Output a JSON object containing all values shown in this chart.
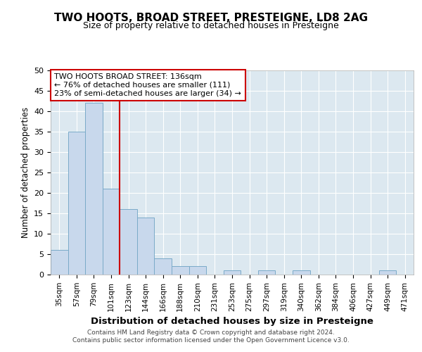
{
  "title": "TWO HOOTS, BROAD STREET, PRESTEIGNE, LD8 2AG",
  "subtitle": "Size of property relative to detached houses in Presteigne",
  "xlabel": "Distribution of detached houses by size in Presteigne",
  "ylabel": "Number of detached properties",
  "categories": [
    "35sqm",
    "57sqm",
    "79sqm",
    "101sqm",
    "123sqm",
    "144sqm",
    "166sqm",
    "188sqm",
    "210sqm",
    "231sqm",
    "253sqm",
    "275sqm",
    "297sqm",
    "319sqm",
    "340sqm",
    "362sqm",
    "384sqm",
    "406sqm",
    "427sqm",
    "449sqm",
    "471sqm"
  ],
  "values": [
    6,
    35,
    42,
    21,
    16,
    14,
    4,
    2,
    2,
    0,
    1,
    0,
    1,
    0,
    1,
    0,
    0,
    0,
    0,
    1,
    0
  ],
  "bar_color": "#c8d8ec",
  "bar_edge_color": "#7aaac8",
  "vline_color": "#cc0000",
  "vline_index": 4,
  "ylim": [
    0,
    50
  ],
  "yticks": [
    0,
    5,
    10,
    15,
    20,
    25,
    30,
    35,
    40,
    45,
    50
  ],
  "annotation_line1": "TWO HOOTS BROAD STREET: 136sqm",
  "annotation_line2": "← 76% of detached houses are smaller (111)",
  "annotation_line3": "23% of semi-detached houses are larger (34) →",
  "annotation_box_color": "#ffffff",
  "annotation_box_edge": "#cc0000",
  "background_color": "#dce8f0",
  "grid_color": "#ffffff",
  "footer_line1": "Contains HM Land Registry data © Crown copyright and database right 2024.",
  "footer_line2": "Contains public sector information licensed under the Open Government Licence v3.0."
}
